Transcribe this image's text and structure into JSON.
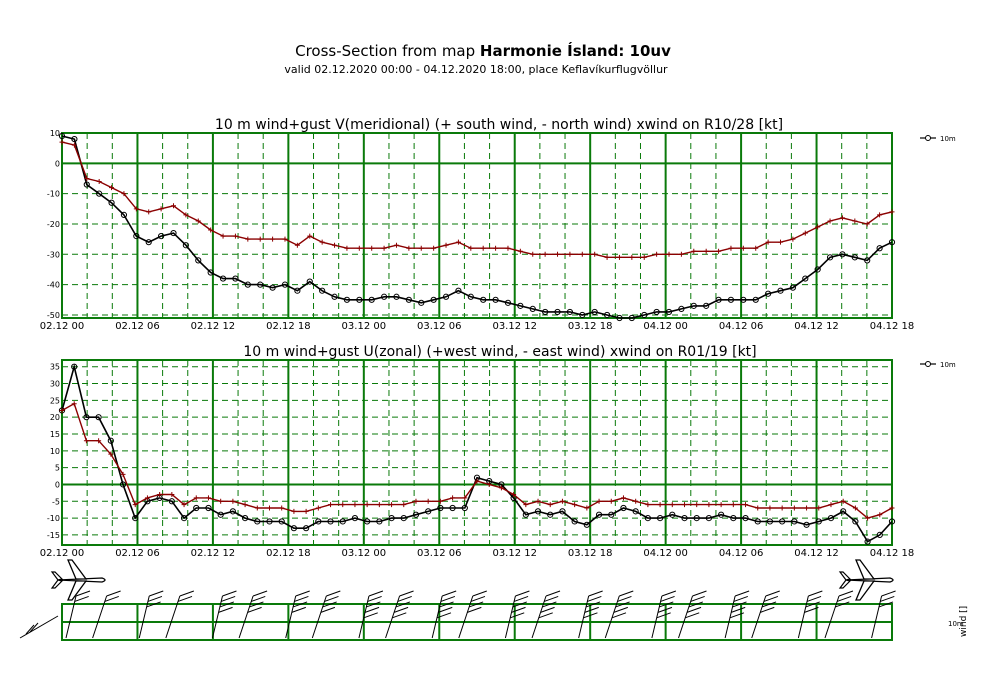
{
  "header": {
    "title_prefix": "Cross-Section from map ",
    "title_bold": "Harmonie Ísland: 10uv",
    "subtitle": "valid 02.12.2020 00:00 - 04.12.2020 18:00, place Keflavíkurflugvöllur"
  },
  "colors": {
    "grid": "#0a7a0a",
    "wind": "#000000",
    "gust": "#8b0000"
  },
  "chart_data": [
    {
      "type": "line",
      "title": "10 m wind+gust V(meridional) (+ south wind, - north wind) xwind on R10/28 [kt]",
      "x_tick_labels": [
        "02.12 00",
        "02.12 06",
        "02.12 12",
        "02.12 18",
        "03.12 00",
        "03.12 06",
        "03.12 12",
        "03.12 18",
        "04.12 00",
        "04.12 06",
        "04.12 12",
        "04.12 18"
      ],
      "y_ticks": [
        10,
        0,
        -10,
        -20,
        -30,
        -40,
        -50
      ],
      "ylim": [
        -51,
        10
      ],
      "legend": "10m",
      "series": [
        {
          "name": "10m",
          "values": [
            9,
            8,
            -7,
            -10,
            -13,
            -17,
            -24,
            -26,
            -24,
            -23,
            -27,
            -32,
            -36,
            -38,
            -38,
            -40,
            -40,
            -41,
            -40,
            -42,
            -39,
            -42,
            -44,
            -45,
            -45,
            -45,
            -44,
            -44,
            -45,
            -46,
            -45,
            -44,
            -42,
            -44,
            -45,
            -45,
            -46,
            -47,
            -48,
            -49,
            -49,
            -49,
            -50,
            -49,
            -50,
            -51,
            -51,
            -50,
            -49,
            -49,
            -48,
            -47,
            -47,
            -45,
            -45,
            -45,
            -45,
            -43,
            -42,
            -41,
            -38,
            -35,
            -31,
            -30,
            -31,
            -32,
            -28,
            -26
          ]
        },
        {
          "values": [
            7,
            6,
            -5,
            -6,
            -8,
            -10,
            -15,
            -16,
            -15,
            -14,
            -17,
            -19,
            -22,
            -24,
            -24,
            -25,
            -25,
            -25,
            -25,
            -27,
            -24,
            -26,
            -27,
            -28,
            -28,
            -28,
            -28,
            -27,
            -28,
            -28,
            -28,
            -27,
            -26,
            -28,
            -28,
            -28,
            -28,
            -29,
            -30,
            -30,
            -30,
            -30,
            -30,
            -30,
            -31,
            -31,
            -31,
            -31,
            -30,
            -30,
            -30,
            -29,
            -29,
            -29,
            -28,
            -28,
            -28,
            -26,
            -26,
            -25,
            -23,
            -21,
            -19,
            -18,
            -19,
            -20,
            -17,
            -16
          ]
        }
      ]
    },
    {
      "type": "line",
      "title": "10 m wind+gust U(zonal) (+west wind, - east wind) xwind on R01/19 [kt]",
      "x_tick_labels": [
        "02.12 00",
        "02.12 06",
        "02.12 12",
        "02.12 18",
        "03.12 00",
        "03.12 06",
        "03.12 12",
        "03.12 18",
        "04.12 00",
        "04.12 06",
        "04.12 12",
        "04.12 18"
      ],
      "y_ticks": [
        35,
        30,
        25,
        20,
        15,
        10,
        5,
        0,
        -5,
        -10,
        -15
      ],
      "ylim": [
        -18,
        37
      ],
      "legend": "10m",
      "series": [
        {
          "name": "10m",
          "values": [
            22,
            35,
            20,
            20,
            13,
            0,
            -10,
            -5,
            -4,
            -5,
            -10,
            -7,
            -7,
            -9,
            -8,
            -10,
            -11,
            -11,
            -11,
            -13,
            -13,
            -11,
            -11,
            -11,
            -10,
            -11,
            -11,
            -10,
            -10,
            -9,
            -8,
            -7,
            -7,
            -7,
            2,
            1,
            0,
            -4,
            -9,
            -8,
            -9,
            -8,
            -11,
            -12,
            -9,
            -9,
            -7,
            -8,
            -10,
            -10,
            -9,
            -10,
            -10,
            -10,
            -9,
            -10,
            -10,
            -11,
            -11,
            -11,
            -11,
            -12,
            -11,
            -10,
            -8,
            -11,
            -17,
            -15,
            -11
          ]
        },
        {
          "values": [
            22,
            24,
            13,
            13,
            9,
            3,
            -6,
            -4,
            -3,
            -3,
            -6,
            -4,
            -4,
            -5,
            -5,
            -6,
            -7,
            -7,
            -7,
            -8,
            -8,
            -7,
            -6,
            -6,
            -6,
            -6,
            -6,
            -6,
            -6,
            -5,
            -5,
            -5,
            -4,
            -4,
            1,
            0,
            -1,
            -3,
            -6,
            -5,
            -6,
            -5,
            -6,
            -7,
            -5,
            -5,
            -4,
            -5,
            -6,
            -6,
            -6,
            -6,
            -6,
            -6,
            -6,
            -6,
            -6,
            -7,
            -7,
            -7,
            -7,
            -7,
            -7,
            -6,
            -5,
            -7,
            -10,
            -9,
            -7
          ]
        }
      ]
    }
  ],
  "barbs": {
    "legend_top": "10m",
    "legend_side": "wind []"
  }
}
